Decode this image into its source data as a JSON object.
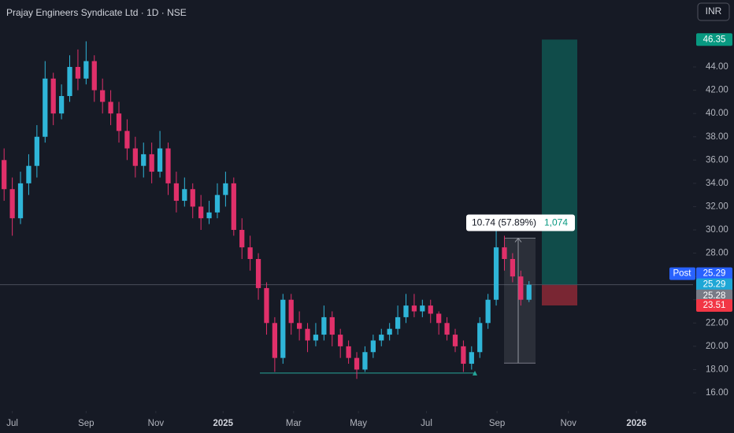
{
  "chart_data": {
    "type": "candlestick",
    "title": "Prajay Engineers Syndicate Ltd · 1D · NSE",
    "currency_button": "INR",
    "up_color": "#2fb5d8",
    "down_color": "#e0306a",
    "open": [
      36,
      33.5,
      31,
      34,
      35.5,
      38,
      43,
      40,
      41.5,
      44,
      43,
      44.5,
      42,
      41,
      40,
      38.5,
      37,
      35.5,
      36.5,
      35,
      37,
      34,
      32.5,
      33.5,
      32,
      31,
      31.5,
      33,
      34,
      30,
      28.5,
      27.5,
      25,
      22,
      19,
      24,
      22,
      21.5,
      20.5,
      21,
      22.5,
      21,
      20,
      19,
      18,
      19.5,
      20.5,
      21,
      21.5,
      22.5,
      23.5,
      23,
      23.5,
      22.8,
      22,
      21,
      20,
      18.5,
      19.5,
      22,
      24,
      28.5,
      27.5,
      26,
      24
    ],
    "high": [
      37,
      34.5,
      35,
      36.5,
      39,
      44.5,
      43.5,
      42.5,
      45,
      45.5,
      46.2,
      45,
      43,
      42,
      41,
      39.5,
      38,
      37.5,
      37.5,
      38.5,
      37.5,
      35,
      34.5,
      34,
      33,
      32.5,
      34,
      35,
      34.5,
      31,
      29.5,
      28,
      25.5,
      22.5,
      24.5,
      24.5,
      23,
      22,
      22,
      23.5,
      23,
      21.5,
      20.5,
      19.5,
      20,
      21,
      21.5,
      22,
      23.5,
      24.5,
      24.5,
      24,
      24,
      23,
      22.5,
      21.5,
      20.5,
      20,
      22.5,
      24.5,
      29.9,
      29.5,
      28,
      26.5,
      25.6
    ],
    "low": [
      32.5,
      29.5,
      30.5,
      33,
      34.5,
      37.5,
      39,
      39.5,
      41,
      42,
      42.5,
      41,
      40,
      39,
      37.5,
      36,
      34.5,
      34.5,
      34,
      34.5,
      33,
      31.5,
      32,
      31,
      30,
      30.5,
      31,
      32,
      29.5,
      27.5,
      26.5,
      24,
      21,
      17.8,
      18.5,
      21,
      20.5,
      19.5,
      20,
      20.5,
      20,
      19,
      18.5,
      17.2,
      17.8,
      19,
      20,
      20.5,
      21,
      22,
      22.5,
      22.5,
      22,
      21,
      20.5,
      19.5,
      17.8,
      18,
      19,
      21.5,
      23.5,
      26.5,
      25.5,
      23.5,
      23.8
    ],
    "close": [
      33.5,
      31,
      34,
      35.5,
      38,
      43,
      40,
      41.5,
      44,
      43,
      44.5,
      42,
      41,
      40,
      38.5,
      37,
      35.5,
      36.5,
      35,
      37,
      34,
      32.5,
      33.5,
      32,
      31,
      31.5,
      33,
      34,
      30,
      28.5,
      27.5,
      25,
      22,
      19,
      24,
      22,
      21.5,
      20.5,
      21,
      22.5,
      21,
      20,
      19,
      18,
      19.5,
      20.5,
      21,
      21.5,
      22.5,
      23.5,
      23,
      23.5,
      22.8,
      22,
      21,
      20,
      18.5,
      19.5,
      22,
      24,
      28.5,
      27.5,
      26,
      24,
      25.29
    ],
    "xlim": [
      -0.5,
      84
    ],
    "xticks": [
      {
        "value": 1,
        "label": "Jul"
      },
      {
        "value": 10,
        "label": "Sep"
      },
      {
        "value": 18.5,
        "label": "Nov"
      },
      {
        "value": 26.7,
        "label": "2025"
      },
      {
        "value": 35.3,
        "label": "Mar"
      },
      {
        "value": 43.2,
        "label": "May"
      },
      {
        "value": 51.5,
        "label": "Jul"
      },
      {
        "value": 60.1,
        "label": "Sep"
      },
      {
        "value": 68.8,
        "label": "Nov"
      },
      {
        "value": 77.1,
        "label": "2026"
      }
    ],
    "ylim": [
      14.58,
      49.75
    ],
    "yticks": [
      {
        "value": 16,
        "label": "16.00"
      },
      {
        "value": 18,
        "label": "18.00"
      },
      {
        "value": 20,
        "label": "20.00"
      },
      {
        "value": 22,
        "label": "22.00"
      },
      {
        "value": 24,
        "label": "24.00"
      },
      {
        "value": 26,
        "label": "26.00"
      },
      {
        "value": 28,
        "label": "28.00"
      },
      {
        "value": 30,
        "label": "30.00"
      },
      {
        "value": 32,
        "label": "32.00"
      },
      {
        "value": 34,
        "label": "34.00"
      },
      {
        "value": 36,
        "label": "36.00"
      },
      {
        "value": 38,
        "label": "38.00"
      },
      {
        "value": 40,
        "label": "40.00"
      },
      {
        "value": 42,
        "label": "42.00"
      },
      {
        "value": 44,
        "label": "44.00"
      }
    ],
    "position": {
      "target": 46.35,
      "entry": 25.29,
      "stop": 23.51
    },
    "support_line": 17.7,
    "measure": {
      "low": 18.55,
      "high": 29.29,
      "change_label": "10.74 (57.89%)",
      "bars_label": "1,074"
    },
    "price_labels": [
      {
        "value": 46.35,
        "color": "#089981"
      },
      {
        "value": 25.29,
        "color": "#2962ff",
        "tag": "Post"
      },
      {
        "value": 25.29,
        "color": "#1ea7d6"
      },
      {
        "value": 25.28,
        "color": "#787b86"
      },
      {
        "value": 23.51,
        "color": "#f23645"
      }
    ]
  }
}
